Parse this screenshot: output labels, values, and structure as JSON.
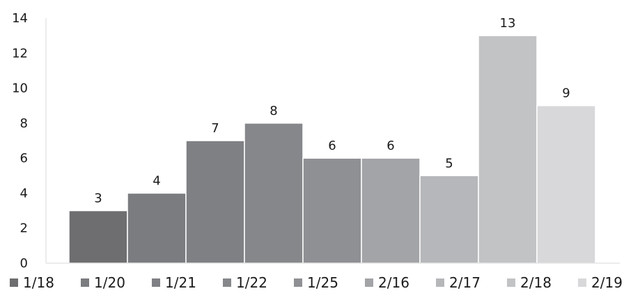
{
  "chart_data": {
    "type": "bar",
    "categories": [
      "1/18",
      "1/20",
      "1/21",
      "1/22",
      "1/25",
      "2/16",
      "2/17",
      "2/18",
      "2/19"
    ],
    "values": [
      3,
      4,
      7,
      8,
      6,
      6,
      5,
      13,
      9
    ],
    "data_labels": [
      "3",
      "4",
      "7",
      "8",
      "6",
      "6",
      "5",
      "13",
      "9"
    ],
    "colors": [
      "#6e6e71",
      "#7b7c80",
      "#7f8084",
      "#86878b",
      "#8f9094",
      "#a3a4a8",
      "#b6b7ba",
      "#c2c3c5",
      "#d8d8da"
    ],
    "ylim": [
      0,
      14
    ],
    "yticks": [
      0,
      2,
      4,
      6,
      8,
      10,
      12,
      14
    ],
    "ytick_labels": [
      "0",
      "2",
      "4",
      "6",
      "8",
      "10",
      "12",
      "14"
    ],
    "grid": false,
    "legend_placement": "bottom",
    "xlabel": "",
    "ylabel": ""
  }
}
